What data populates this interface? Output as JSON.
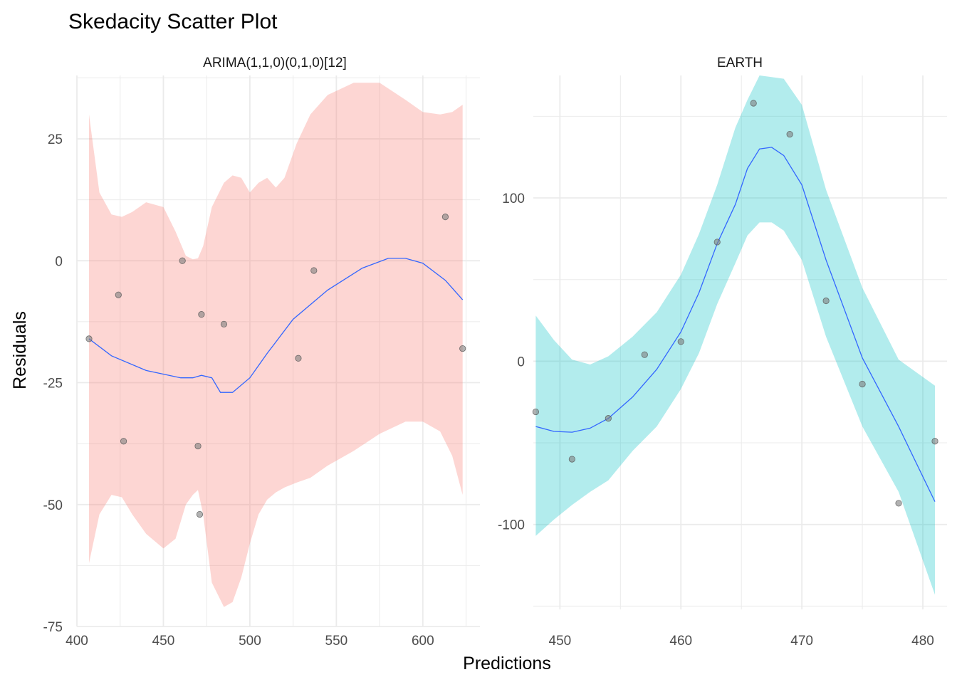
{
  "title": "Skedacity Scatter Plot",
  "xlabel": "Predictions",
  "ylabel": "Residuals",
  "colors": {
    "grid": "#ebebeb",
    "axis_text": "#4d4d4d",
    "smooth_line": "#3366ff",
    "point_fill": "#7f7f7f",
    "point_stroke": "#555555",
    "ribbon_arima": "#f8766d",
    "ribbon_earth": "#00bfc4"
  },
  "chart_data": [
    {
      "type": "scatter",
      "facet_label": "ARIMA(1,1,0)(0,1,0)[12]",
      "xlim": [
        400,
        633
      ],
      "ylim": [
        -75,
        38
      ],
      "x_ticks": [
        400,
        450,
        500,
        550,
        600
      ],
      "y_ticks": [
        -75,
        -50,
        -25,
        0,
        25
      ],
      "points": [
        {
          "x": 407,
          "y": -16
        },
        {
          "x": 424,
          "y": -7
        },
        {
          "x": 427,
          "y": -37
        },
        {
          "x": 461,
          "y": 0
        },
        {
          "x": 470,
          "y": -38
        },
        {
          "x": 471,
          "y": -52
        },
        {
          "x": 472,
          "y": -11
        },
        {
          "x": 485,
          "y": -13
        },
        {
          "x": 528,
          "y": -20
        },
        {
          "x": 537,
          "y": -2
        },
        {
          "x": 613,
          "y": 9
        },
        {
          "x": 623,
          "y": -18
        }
      ],
      "smooth": {
        "x": [
          407,
          420,
          440,
          460,
          467,
          472,
          478,
          483,
          490,
          500,
          510,
          525,
          545,
          565,
          580,
          590,
          600,
          613,
          623
        ],
        "y": [
          -16,
          -19.5,
          -22.5,
          -24,
          -24,
          -23.5,
          -24,
          -27,
          -27,
          -24,
          -19,
          -12,
          -6,
          -1.5,
          0.5,
          0.5,
          -0.5,
          -4,
          -8
        ]
      },
      "band": {
        "x": [
          407,
          413,
          420,
          426,
          432,
          440,
          450,
          457,
          463,
          467,
          470,
          473,
          478,
          485,
          490,
          495,
          500,
          505,
          510,
          515,
          520,
          527,
          535,
          545,
          560,
          575,
          590,
          600,
          610,
          617,
          623
        ],
        "upper": [
          30,
          14,
          9.5,
          9,
          10,
          12,
          11,
          6,
          1,
          0.3,
          0.5,
          3,
          11,
          16,
          17.5,
          17,
          14,
          16,
          17,
          15,
          17,
          24,
          30,
          34,
          36.5,
          36.5,
          33,
          30.5,
          30,
          30.5,
          32
        ],
        "lower": [
          -62,
          -52,
          -48,
          -48.5,
          -52,
          -56,
          -59,
          -57,
          -50,
          -48,
          -47,
          -52,
          -66,
          -71,
          -70,
          -65,
          -58,
          -52,
          -49,
          -47.5,
          -46.5,
          -45.5,
          -44.5,
          -42,
          -39,
          -35.5,
          -33,
          -33,
          -35,
          -40,
          -48
        ]
      }
    },
    {
      "type": "scatter",
      "facet_label": "EARTH",
      "xlim": [
        447.8,
        482.0
      ],
      "ylim": [
        -152,
        175
      ],
      "x_ticks": [
        450,
        460,
        470,
        480
      ],
      "y_ticks": [
        -100,
        0,
        100
      ],
      "points": [
        {
          "x": 448,
          "y": -31
        },
        {
          "x": 451,
          "y": -60
        },
        {
          "x": 454,
          "y": -35
        },
        {
          "x": 457,
          "y": 4
        },
        {
          "x": 460,
          "y": 12
        },
        {
          "x": 463,
          "y": 73
        },
        {
          "x": 466,
          "y": 158
        },
        {
          "x": 469,
          "y": 139
        },
        {
          "x": 472,
          "y": 37
        },
        {
          "x": 475,
          "y": -14
        },
        {
          "x": 478,
          "y": -87
        },
        {
          "x": 481,
          "y": -49
        }
      ],
      "smooth": {
        "x": [
          448,
          449.5,
          451,
          452.5,
          454,
          456,
          458,
          460,
          461.5,
          463,
          464.5,
          465.5,
          466.5,
          467.5,
          468.5,
          470,
          472,
          475,
          478,
          481
        ],
        "y": [
          -40,
          -43,
          -43.5,
          -41,
          -35,
          -22,
          -5,
          18,
          42,
          72,
          96,
          118,
          130,
          131,
          126,
          108,
          62,
          2,
          -40,
          -86
        ]
      },
      "band": {
        "x": [
          448,
          449.5,
          451,
          452.5,
          454,
          456,
          458,
          460,
          461.5,
          463,
          464.5,
          465.5,
          466.5,
          467.5,
          468.5,
          470,
          472,
          475,
          478,
          481
        ],
        "upper": [
          28,
          13,
          1,
          -2,
          3,
          15,
          30,
          53,
          78,
          108,
          143,
          160,
          175,
          174,
          173,
          157,
          105,
          45,
          1,
          -15
        ],
        "lower": [
          -107,
          -97,
          -88,
          -80,
          -73,
          -55,
          -40,
          -17,
          5,
          35,
          60,
          77,
          85,
          85,
          80,
          62,
          15,
          -40,
          -80,
          -143
        ]
      }
    }
  ]
}
